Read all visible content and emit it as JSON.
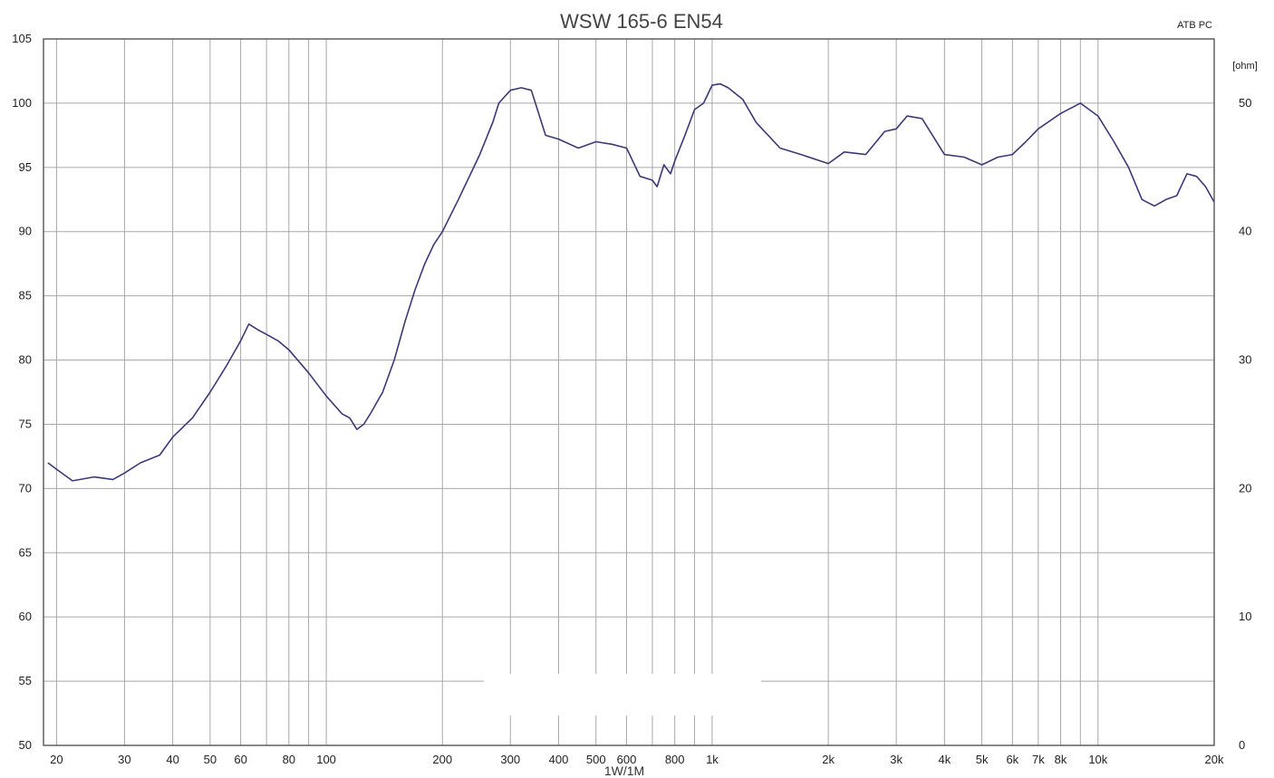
{
  "chart_data": {
    "type": "line",
    "title": "WSW 165-6 EN54",
    "corner_label": "ATB PC",
    "x_label": "1W/1M",
    "right_axis_unit": "[ohm]",
    "x_scale": "log",
    "x_range": [
      18.5,
      20000
    ],
    "y_range": [
      50,
      105
    ],
    "right_y_range": [
      0,
      55
    ],
    "grid": true,
    "legend": "none",
    "colors": {
      "line": "#3a3a7a",
      "grid": "#a8a8a8",
      "frame": "#555555",
      "background": "#ffffff"
    },
    "x_ticks": [
      {
        "value": 20,
        "label": "20"
      },
      {
        "value": 30,
        "label": "30"
      },
      {
        "value": 40,
        "label": "40"
      },
      {
        "value": 50,
        "label": "50"
      },
      {
        "value": 60,
        "label": "60"
      },
      {
        "value": 80,
        "label": "80"
      },
      {
        "value": 100,
        "label": "100"
      },
      {
        "value": 200,
        "label": "200"
      },
      {
        "value": 300,
        "label": "300"
      },
      {
        "value": 400,
        "label": "400"
      },
      {
        "value": 500,
        "label": "500"
      },
      {
        "value": 600,
        "label": "600"
      },
      {
        "value": 800,
        "label": "800"
      },
      {
        "value": 1000,
        "label": "1k"
      },
      {
        "value": 2000,
        "label": "2k"
      },
      {
        "value": 3000,
        "label": "3k"
      },
      {
        "value": 4000,
        "label": "4k"
      },
      {
        "value": 5000,
        "label": "5k"
      },
      {
        "value": 6000,
        "label": "6k"
      },
      {
        "value": 7000,
        "label": "7k"
      },
      {
        "value": 8000,
        "label": "8k"
      },
      {
        "value": 10000,
        "label": "10k"
      },
      {
        "value": 20000,
        "label": "20k"
      }
    ],
    "x_grid": [
      20,
      30,
      40,
      50,
      60,
      70,
      80,
      90,
      100,
      200,
      300,
      400,
      500,
      600,
      700,
      800,
      900,
      1000,
      2000,
      3000,
      4000,
      5000,
      6000,
      7000,
      8000,
      9000,
      10000,
      20000
    ],
    "y_ticks": [
      {
        "value": 50,
        "label": "50"
      },
      {
        "value": 55,
        "label": "55"
      },
      {
        "value": 60,
        "label": "60"
      },
      {
        "value": 65,
        "label": "65"
      },
      {
        "value": 70,
        "label": "70"
      },
      {
        "value": 75,
        "label": "75"
      },
      {
        "value": 80,
        "label": "80"
      },
      {
        "value": 85,
        "label": "85"
      },
      {
        "value": 90,
        "label": "90"
      },
      {
        "value": 95,
        "label": "95"
      },
      {
        "value": 100,
        "label": "100"
      },
      {
        "value": 105,
        "label": "105"
      }
    ],
    "right_y_ticks": [
      {
        "value": 0,
        "label": "0"
      },
      {
        "value": 10,
        "label": "10"
      },
      {
        "value": 20,
        "label": "20"
      },
      {
        "value": 30,
        "label": "30"
      },
      {
        "value": 40,
        "label": "40"
      },
      {
        "value": 50,
        "label": "50"
      }
    ],
    "series": [
      {
        "x": [
          19,
          20,
          22,
          25,
          28,
          30,
          33,
          37,
          40,
          45,
          50,
          55,
          60,
          63,
          67,
          70,
          75,
          80,
          90,
          100,
          110,
          115,
          120,
          125,
          130,
          140,
          150,
          160,
          170,
          180,
          190,
          200,
          220,
          250,
          270,
          280,
          300,
          320,
          340,
          370,
          400,
          450,
          500,
          550,
          600,
          650,
          700,
          720,
          750,
          780,
          800,
          850,
          900,
          950,
          1000,
          1050,
          1100,
          1200,
          1300,
          1500,
          1700,
          2000,
          2200,
          2500,
          2800,
          3000,
          3200,
          3500,
          4000,
          4500,
          5000,
          5500,
          6000,
          6500,
          7000,
          8000,
          9000,
          10000,
          11000,
          12000,
          13000,
          14000,
          15000,
          16000,
          17000,
          18000,
          19000,
          20000
        ],
        "values": [
          72.0,
          71.5,
          70.6,
          70.9,
          70.7,
          71.2,
          72.0,
          72.6,
          74.0,
          75.5,
          77.5,
          79.5,
          81.5,
          82.8,
          82.3,
          82.0,
          81.5,
          80.8,
          79.0,
          77.2,
          75.8,
          75.5,
          74.6,
          75.0,
          75.8,
          77.5,
          80.0,
          83.0,
          85.5,
          87.5,
          89.0,
          90.0,
          92.5,
          96.0,
          98.5,
          100.0,
          101.0,
          101.2,
          101.0,
          97.5,
          97.2,
          96.5,
          97.0,
          96.8,
          96.5,
          94.3,
          94.0,
          93.5,
          95.2,
          94.5,
          95.5,
          97.5,
          99.5,
          100.0,
          101.4,
          101.5,
          101.2,
          100.3,
          98.5,
          96.5,
          96.0,
          95.3,
          96.2,
          96.0,
          97.8,
          98.0,
          99.0,
          98.8,
          96.0,
          95.8,
          95.2,
          95.8,
          96.0,
          97.0,
          98.0,
          99.2,
          100.0,
          99.0,
          97.0,
          95.0,
          92.5,
          92.0,
          92.5,
          92.8,
          94.5,
          94.3,
          93.5,
          92.3
        ]
      }
    ]
  }
}
